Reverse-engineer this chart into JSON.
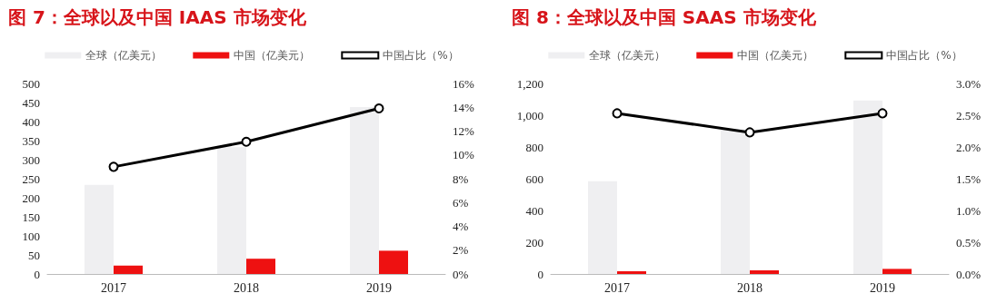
{
  "chart_data": [
    {
      "type": "bar",
      "title": "图 7：全球以及中国 IAAS 市场变化",
      "categories": [
        "2017",
        "2018",
        "2019"
      ],
      "series": [
        {
          "name": "全球（亿美元）",
          "color": "#efeff1",
          "values": [
            234,
            333,
            438
          ]
        },
        {
          "name": "中国（亿美元）",
          "color": "#ee1111",
          "values": [
            22,
            40,
            61
          ]
        },
        {
          "name": "中国占比（%）",
          "type": "line",
          "axis": "y2",
          "color": "#000000",
          "values": [
            9.0,
            11.1,
            13.9
          ]
        }
      ],
      "ylim": [
        0,
        500
      ],
      "yticks": [
        0,
        50,
        100,
        150,
        200,
        250,
        300,
        350,
        400,
        450,
        500
      ],
      "y2lim": [
        0,
        16
      ],
      "y2ticks": [
        {
          "value": 0,
          "label": "0%"
        },
        {
          "value": 2,
          "label": "2%"
        },
        {
          "value": 4,
          "label": "4%"
        },
        {
          "value": 6,
          "label": "6%"
        },
        {
          "value": 8,
          "label": "8%"
        },
        {
          "value": 10,
          "label": "10%"
        },
        {
          "value": 12,
          "label": "12%"
        },
        {
          "value": 14,
          "label": "14%"
        },
        {
          "value": 16,
          "label": "16%"
        }
      ],
      "legend": "top",
      "grid": false,
      "marker": "circle",
      "line_style": "solid"
    },
    {
      "type": "bar",
      "title": "图 8：全球以及中国 SAAS 市场变化",
      "categories": [
        "2017",
        "2018",
        "2019"
      ],
      "series": [
        {
          "name": "全球（亿美元）",
          "color": "#efeff1",
          "values": [
            585,
            910,
            1093
          ]
        },
        {
          "name": "中国（亿美元）",
          "color": "#ee1111",
          "values": [
            17,
            23,
            32
          ]
        },
        {
          "name": "中国占比（%）",
          "type": "line",
          "axis": "y2",
          "color": "#000000",
          "values": [
            2.53,
            2.23,
            2.53
          ]
        }
      ],
      "ylim": [
        0,
        1200
      ],
      "yticks": [
        0,
        200,
        400,
        600,
        800,
        {
          "value": 1000,
          "label": "1,000"
        },
        {
          "value": 1200,
          "label": "1,200"
        }
      ],
      "y2lim": [
        0,
        3
      ],
      "y2ticks": [
        {
          "value": 0,
          "label": "0.0%"
        },
        {
          "value": 0.5,
          "label": "0.5%"
        },
        {
          "value": 1,
          "label": "1.0%"
        },
        {
          "value": 1.5,
          "label": "1.5%"
        },
        {
          "value": 2,
          "label": "2.0%"
        },
        {
          "value": 2.5,
          "label": "2.5%"
        },
        {
          "value": 3,
          "label": "3.0%"
        }
      ],
      "legend": "top",
      "grid": false,
      "marker": "circle",
      "line_style": "solid"
    }
  ]
}
